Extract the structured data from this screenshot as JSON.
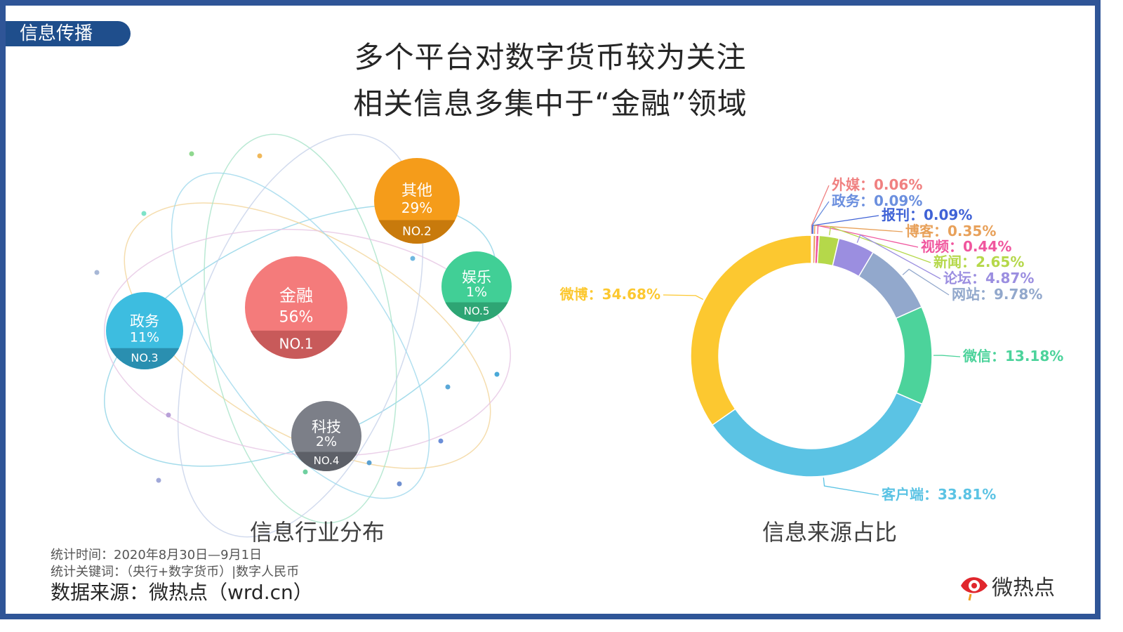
{
  "tag": "信息传播",
  "title_lines": [
    "多个平台对数字货币较为关注",
    "相关信息多集中于“金融”领域"
  ],
  "captions": {
    "left": "信息行业分布",
    "right": "信息来源占比"
  },
  "footer": {
    "time": "统计时间：2020年8月30日—9月1日",
    "keywords": "统计关键词：（央行+数字货币）|数字人民币",
    "source": "数据来源：微热点（wrd.cn）"
  },
  "logo_text": "微热点",
  "chart_data": [
    {
      "type": "bubble",
      "title": "信息行业分布",
      "items": [
        {
          "name": "金融",
          "value": "56%",
          "rank": "NO.1",
          "color": "#f47b7b",
          "band": "#c85a5a"
        },
        {
          "name": "其他",
          "value": "29%",
          "rank": "NO.2",
          "color": "#f59c1a",
          "band": "#c87a0c"
        },
        {
          "name": "政务",
          "value": "11%",
          "rank": "NO.3",
          "color": "#3dbde0",
          "band": "#2a8fb0"
        },
        {
          "name": "科技",
          "value": "2%",
          "rank": "NO.4",
          "color": "#7c7f88",
          "band": "#5d6068"
        },
        {
          "name": "娱乐",
          "value": "1%",
          "rank": "NO.5",
          "color": "#41cf96",
          "band": "#2ea574"
        }
      ]
    },
    {
      "type": "pie",
      "title": "信息来源占比",
      "slices": [
        {
          "name": "外媒",
          "value": 0.06,
          "label": "外媒：0.06%",
          "color": "#f08080"
        },
        {
          "name": "政务",
          "value": 0.09,
          "label": "政务：0.09%",
          "color": "#6b8fde"
        },
        {
          "name": "报刊",
          "value": 0.09,
          "label": "报刊：0.09%",
          "color": "#3f62d6"
        },
        {
          "name": "博客",
          "value": 0.35,
          "label": "博客：0.35%",
          "color": "#e8a15a"
        },
        {
          "name": "视频",
          "value": 0.44,
          "label": "视频：0.44%",
          "color": "#f0569e"
        },
        {
          "name": "新闻",
          "value": 2.65,
          "label": "新闻：2.65%",
          "color": "#b5d84a"
        },
        {
          "name": "论坛",
          "value": 4.87,
          "label": "论坛：4.87%",
          "color": "#9b8ee0"
        },
        {
          "name": "网站",
          "value": 9.78,
          "label": "网站：9.78%",
          "color": "#92a8cc"
        },
        {
          "name": "微信",
          "value": 13.18,
          "label": "微信：13.18%",
          "color": "#4cd39b"
        },
        {
          "name": "客户端",
          "value": 33.81,
          "label": "客户端：33.81%",
          "color": "#5bc3e4"
        },
        {
          "name": "微博",
          "value": 34.68,
          "label": "微博：34.68%",
          "color": "#fcc830"
        }
      ]
    }
  ]
}
